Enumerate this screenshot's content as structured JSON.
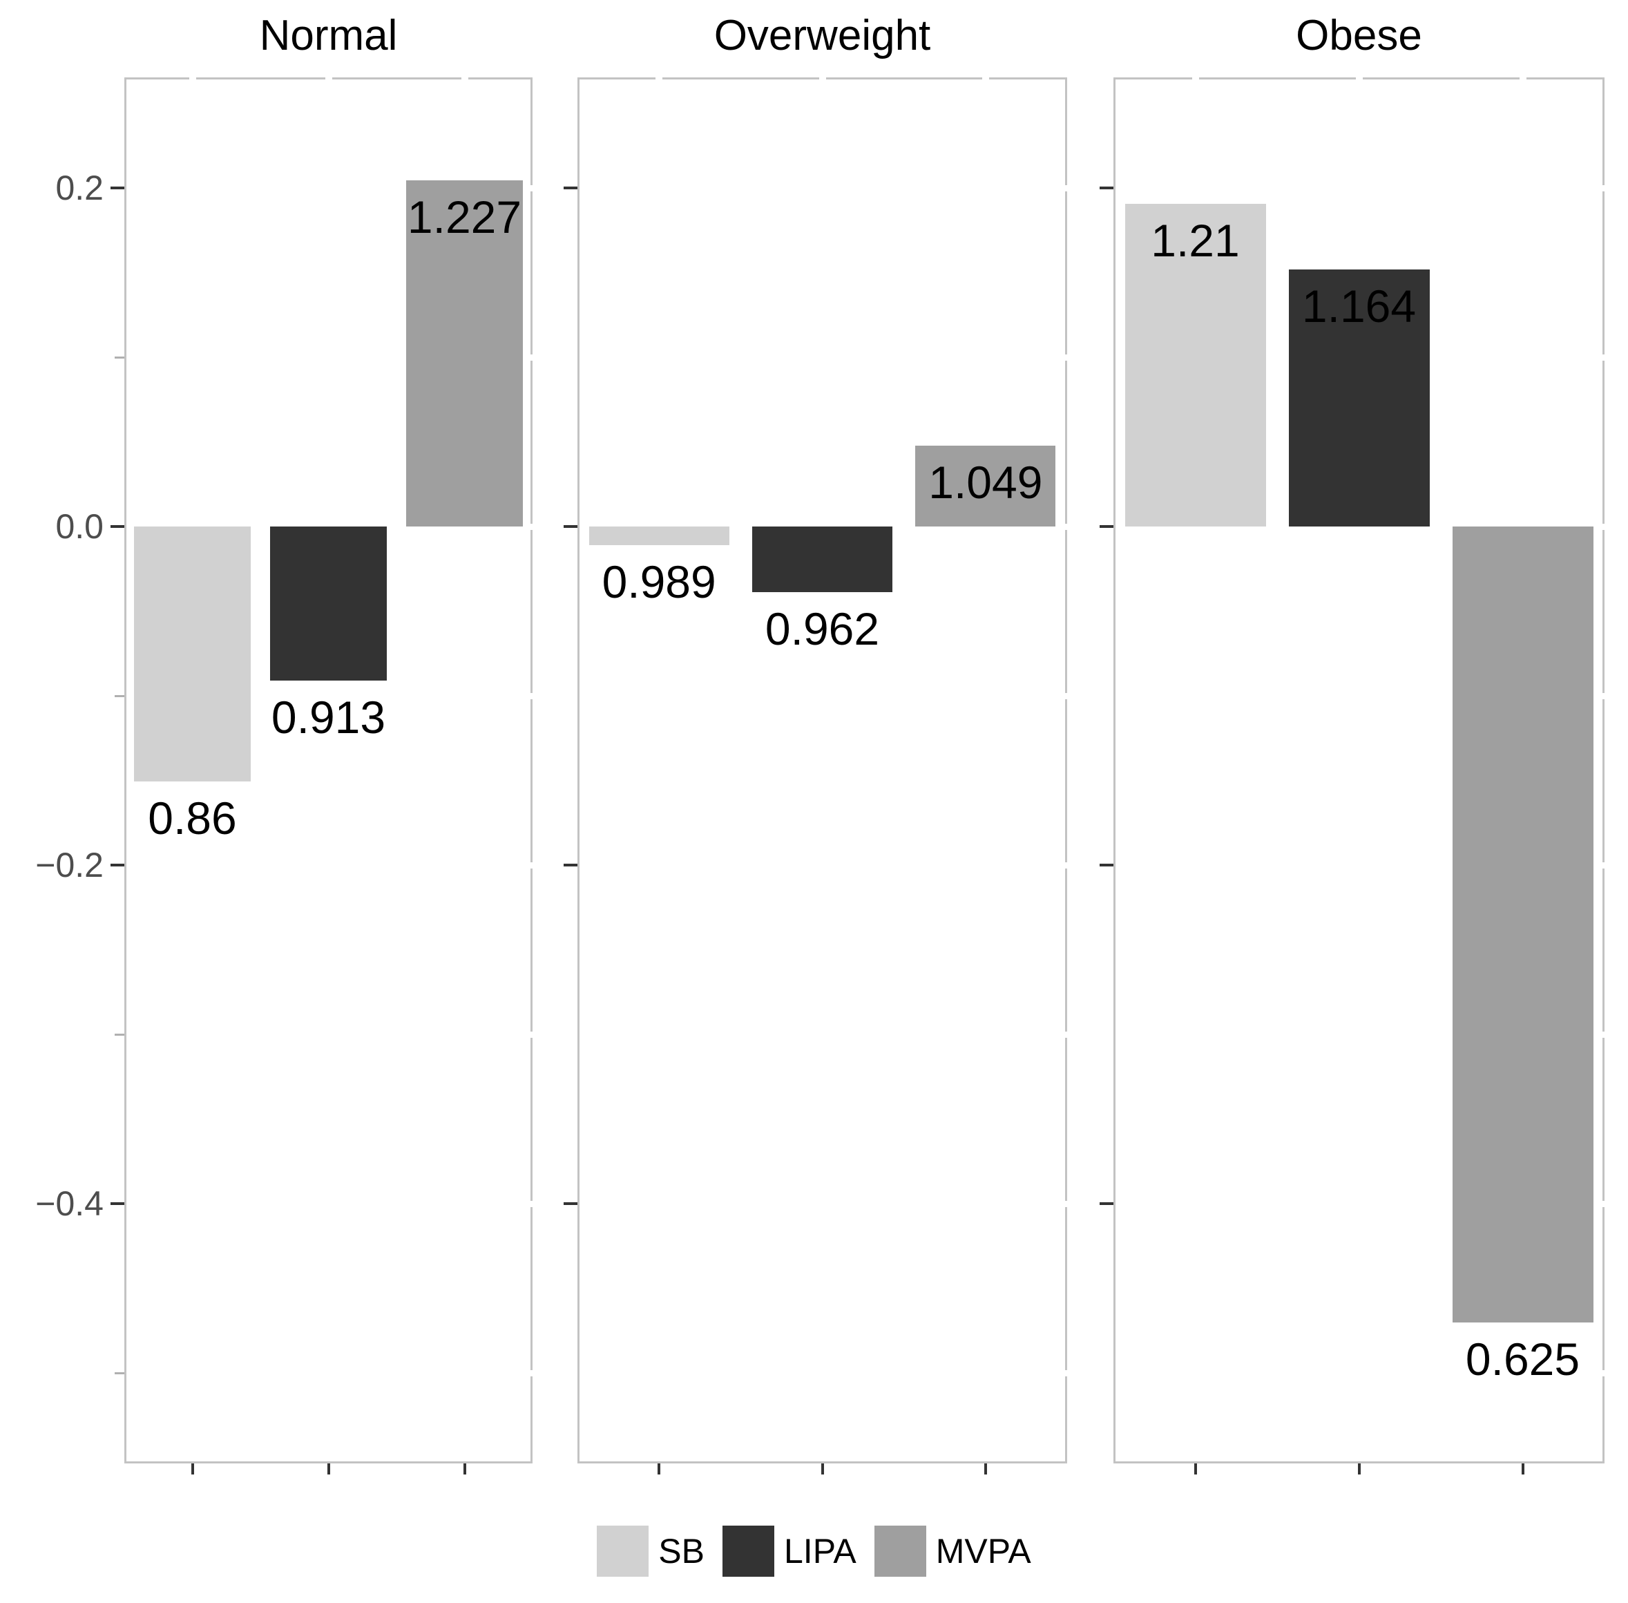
{
  "chart_data": {
    "type": "bar",
    "description": "Faceted bar chart; bar heights are the natural log of the labelled ratio values",
    "bar_transform": "natural_log_of_value",
    "categories": [
      "SB",
      "LIPA",
      "MVPA"
    ],
    "facets": [
      {
        "title": "Normal",
        "bars": [
          {
            "category": "SB",
            "value": 0.86,
            "label": "0.86",
            "log_value": -0.1508
          },
          {
            "category": "LIPA",
            "value": 0.913,
            "label": "0.913",
            "log_value": -0.091
          },
          {
            "category": "MVPA",
            "value": 1.227,
            "label": "1.227",
            "log_value": 0.2046
          }
        ]
      },
      {
        "title": "Overweight",
        "bars": [
          {
            "category": "SB",
            "value": 0.989,
            "label": "0.989",
            "log_value": -0.0111
          },
          {
            "category": "LIPA",
            "value": 0.962,
            "label": "0.962",
            "log_value": -0.0387
          },
          {
            "category": "MVPA",
            "value": 1.049,
            "label": "1.049",
            "log_value": 0.0478
          }
        ]
      },
      {
        "title": "Obese",
        "bars": [
          {
            "category": "SB",
            "value": 1.21,
            "label": "1.21",
            "log_value": 0.1906
          },
          {
            "category": "LIPA",
            "value": 1.164,
            "label": "1.164",
            "log_value": 0.1518
          },
          {
            "category": "MVPA",
            "value": 0.625,
            "label": "0.625",
            "log_value": -0.47
          }
        ]
      }
    ],
    "y_axis": {
      "ylim": [
        -0.5535,
        0.2653
      ],
      "major_ticks": [
        {
          "value": 0.2,
          "label": "0.2"
        },
        {
          "value": 0.0,
          "label": "0.0"
        },
        {
          "value": -0.2,
          "label": "−0.2"
        },
        {
          "value": -0.4,
          "label": "−0.4"
        }
      ],
      "minor_ticks": [
        0.1,
        -0.1,
        -0.3,
        -0.5
      ],
      "grid": false
    },
    "colors": {
      "SB": "#d1d1d1",
      "LIPA": "#333333",
      "MVPA": "#9f9f9f"
    },
    "legend": {
      "position": "bottom-center",
      "items": [
        {
          "label": "SB",
          "color": "#d1d1d1"
        },
        {
          "label": "LIPA",
          "color": "#333333"
        },
        {
          "label": "MVPA",
          "color": "#9f9f9f"
        }
      ]
    },
    "style": {
      "panel_border_color": "#c3c3c3",
      "axis_text_color": "#4d4d4d",
      "tick_color": "#333333",
      "minor_tick_color": "#b0b0b0",
      "background": "#ffffff"
    }
  }
}
